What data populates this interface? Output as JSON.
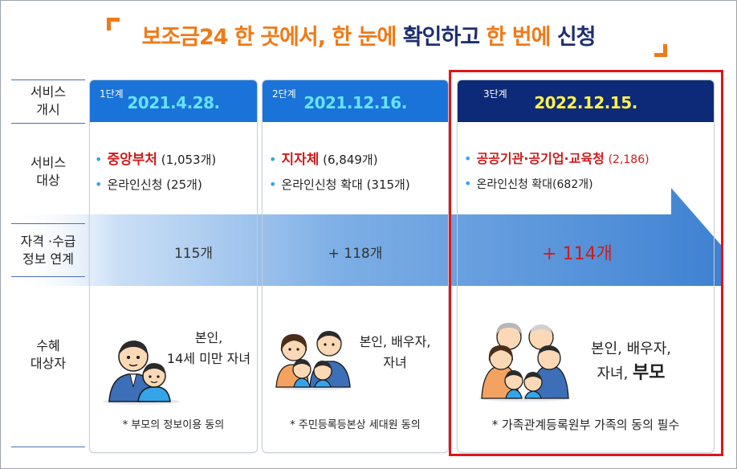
{
  "title": {
    "part1": "보조금24 한 곳에서, 한 눈에 ",
    "part2": "확인하고 ",
    "part3": "한 번에 ",
    "part4": "신청"
  },
  "rows": {
    "launch": "서비스\n개시",
    "target": "서비스\n대상",
    "link": "자격 ·수급\n정보 연계",
    "recipient": "수혜\n대상자"
  },
  "stages": [
    {
      "stage": "1단계",
      "date": "2021.4.28.",
      "target_name": "중앙부처",
      "target_count": "(1,053개)",
      "online": "온라인신청 (25개)",
      "link_count": "115개",
      "recipient_line1": "본인,",
      "recipient_line2": "14세 미만 자녀",
      "note": "* 부모의 정보이용 동의"
    },
    {
      "stage": "2단계",
      "date": "2021.12.16.",
      "target_name": "지자체",
      "target_count": "(6,849개)",
      "online": "온라인신청 확대 (315개)",
      "link_count": "+ 118개",
      "recipient_line1": "본인, 배우자,",
      "recipient_line2": "자녀",
      "note": "* 주민등록등본상 세대원 동의"
    },
    {
      "stage": "3단계",
      "date": "2022.12.15.",
      "target_name": "공공기관·공기업·교육청",
      "target_count": "(2,186)",
      "online": "온라인신청 확대(682개)",
      "link_count": "+ 114개",
      "recipient_line1": "본인,  배우자,",
      "recipient_line2a": "자녀,",
      "recipient_line2b": "부모",
      "note": "* 가족관계등록원부 가족의 동의 필수"
    }
  ],
  "colors": {
    "orange": "#f07a18",
    "navy": "#1d2f6f",
    "stage_blue": "#1a73d9",
    "stage3_navy": "#0d2a78",
    "highlight_red": "#d11b1b",
    "arrow_blue": "#4f8fd6",
    "date_cyan": "#66e3ff",
    "date_yellow": "#fff24a"
  }
}
